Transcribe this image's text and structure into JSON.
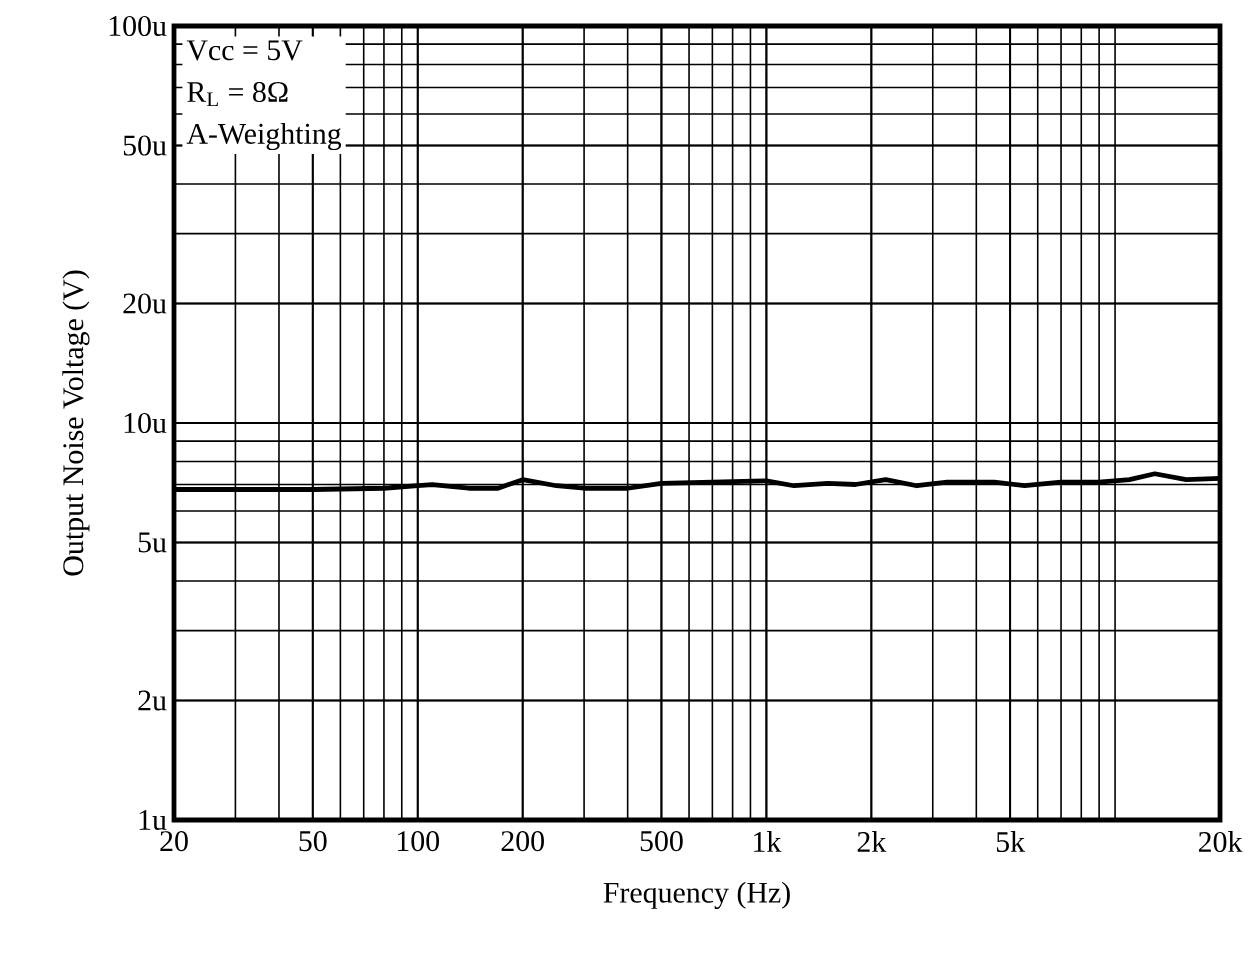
{
  "chart_data": {
    "type": "line",
    "xlabel": "Frequency (Hz)",
    "ylabel": "Output Noise Voltage (V)",
    "annotations": [
      "Vcc = 5V",
      "R$_{L}$ = 8Ω",
      "A-Weighting"
    ],
    "x": [
      20,
      50,
      80,
      100,
      110,
      140,
      170,
      200,
      250,
      300,
      400,
      500,
      700,
      1000,
      1200,
      1500,
      1800,
      2200,
      2700,
      3300,
      4500,
      5500,
      7000,
      9000,
      11000,
      13000,
      16000,
      20000
    ],
    "series": [
      {
        "color": "#000000",
        "values": [
          6.8,
          6.8,
          6.85,
          6.95,
          7.0,
          6.85,
          6.85,
          7.2,
          6.95,
          6.85,
          6.85,
          7.05,
          7.1,
          7.15,
          6.95,
          7.05,
          7.0,
          7.2,
          6.95,
          7.1,
          7.1,
          6.95,
          7.1,
          7.1,
          7.2,
          7.45,
          7.2,
          7.25
        ]
      }
    ],
    "log": "xy",
    "grid": true,
    "marker": "none",
    "line_style": "solid",
    "xlim": [
      20,
      20000
    ],
    "ylim": [
      1,
      100
    ],
    "xticks": [
      20,
      50,
      100,
      200,
      500,
      {
        "value": 1000,
        "label": "1k"
      },
      {
        "value": 2000,
        "label": "2k"
      },
      {
        "value": 5000,
        "label": "5k"
      },
      {
        "value": 20000,
        "label": "20k"
      }
    ],
    "yticks": [
      {
        "value": 1,
        "label": "1u"
      },
      {
        "value": 2,
        "label": "2u"
      },
      {
        "value": 5,
        "label": "5u"
      },
      {
        "value": 10,
        "label": "10u"
      },
      {
        "value": 20,
        "label": "20u"
      },
      {
        "value": 50,
        "label": "50u"
      },
      {
        "value": 100,
        "label": "100u"
      }
    ]
  }
}
